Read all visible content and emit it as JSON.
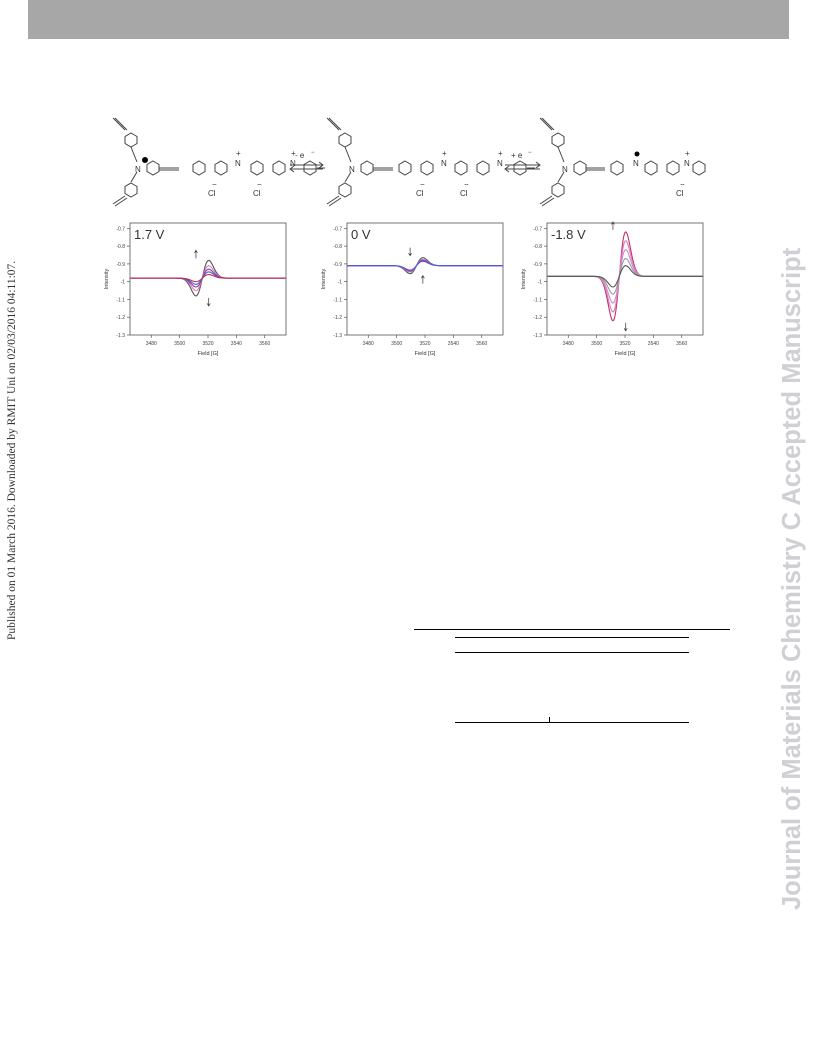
{
  "header": {
    "bar_color": "#a7a7a7"
  },
  "side_note": "Published on 01 March 2016. Downloaded by RMIT Uni on 02/03/2016 04:11:07.",
  "watermark": "Journal of Materials Chemistry C Accepted Manuscript",
  "scheme": {
    "arrow_1_label": "- e",
    "arrow_2_label": "+ e",
    "electron_sup": "−",
    "atom_N": "N",
    "charge_plus": "+",
    "counter_ion": "Cl",
    "charge_minus": "−"
  },
  "chart_data": [
    {
      "type": "line",
      "title": "1.7 V",
      "xlabel": "Field [G]",
      "ylabel": "Intensity",
      "xlim": [
        3465,
        3575
      ],
      "ylim": [
        -1.3,
        -0.67
      ],
      "xticks": [
        3480,
        3500,
        3520,
        3540,
        3560
      ],
      "yticks": [
        -0.7,
        -0.8,
        -0.9,
        -1.0,
        -1.1,
        -1.2,
        -1.3
      ],
      "baseline": -0.98,
      "center": 3516,
      "width": 4.5,
      "series": [
        {
          "color": "#555555",
          "amplitude": 0.1
        },
        {
          "color": "#e07ab8",
          "amplitude": 0.07
        },
        {
          "color": "#8b3fb0",
          "amplitude": 0.05
        },
        {
          "color": "#4a5fd0",
          "amplitude": 0.035
        },
        {
          "color": "#c0304a",
          "amplitude": 0.02
        }
      ],
      "arrows": "outward"
    },
    {
      "type": "line",
      "title": "0 V",
      "xlabel": "Field [G]",
      "ylabel": "Intensity",
      "xlim": [
        3465,
        3575
      ],
      "ylim": [
        -1.3,
        -0.67
      ],
      "xticks": [
        3480,
        3500,
        3520,
        3540,
        3560
      ],
      "yticks": [
        -0.7,
        -0.8,
        -0.9,
        -1.0,
        -1.1,
        -1.2,
        -1.3
      ],
      "baseline": -0.91,
      "center": 3514,
      "width": 4.5,
      "series": [
        {
          "color": "#555555",
          "amplitude": 0.045
        },
        {
          "color": "#e07ab8",
          "amplitude": 0.035
        },
        {
          "color": "#8b3fb0",
          "amplitude": 0.03
        },
        {
          "color": "#4a5fd0",
          "amplitude": 0.025
        }
      ],
      "arrows": "inward"
    },
    {
      "type": "line",
      "title": "-1.8 V",
      "xlabel": "Field [G]",
      "ylabel": "Intensity",
      "xlim": [
        3465,
        3575
      ],
      "ylim": [
        -1.3,
        -0.67
      ],
      "xticks": [
        3480,
        3500,
        3520,
        3540,
        3560
      ],
      "yticks": [
        -0.7,
        -0.8,
        -0.9,
        -1.0,
        -1.1,
        -1.2,
        -1.3
      ],
      "baseline": -0.97,
      "center": 3516,
      "width": 4.5,
      "series": [
        {
          "color": "#c0306a",
          "amplitude": 0.25
        },
        {
          "color": "#e07ab8",
          "amplitude": 0.2
        },
        {
          "color": "#c48bd0",
          "amplitude": 0.15
        },
        {
          "color": "#9a9a9a",
          "amplitude": 0.1
        },
        {
          "color": "#555555",
          "amplitude": 0.06
        }
      ],
      "arrows": "outward"
    }
  ]
}
